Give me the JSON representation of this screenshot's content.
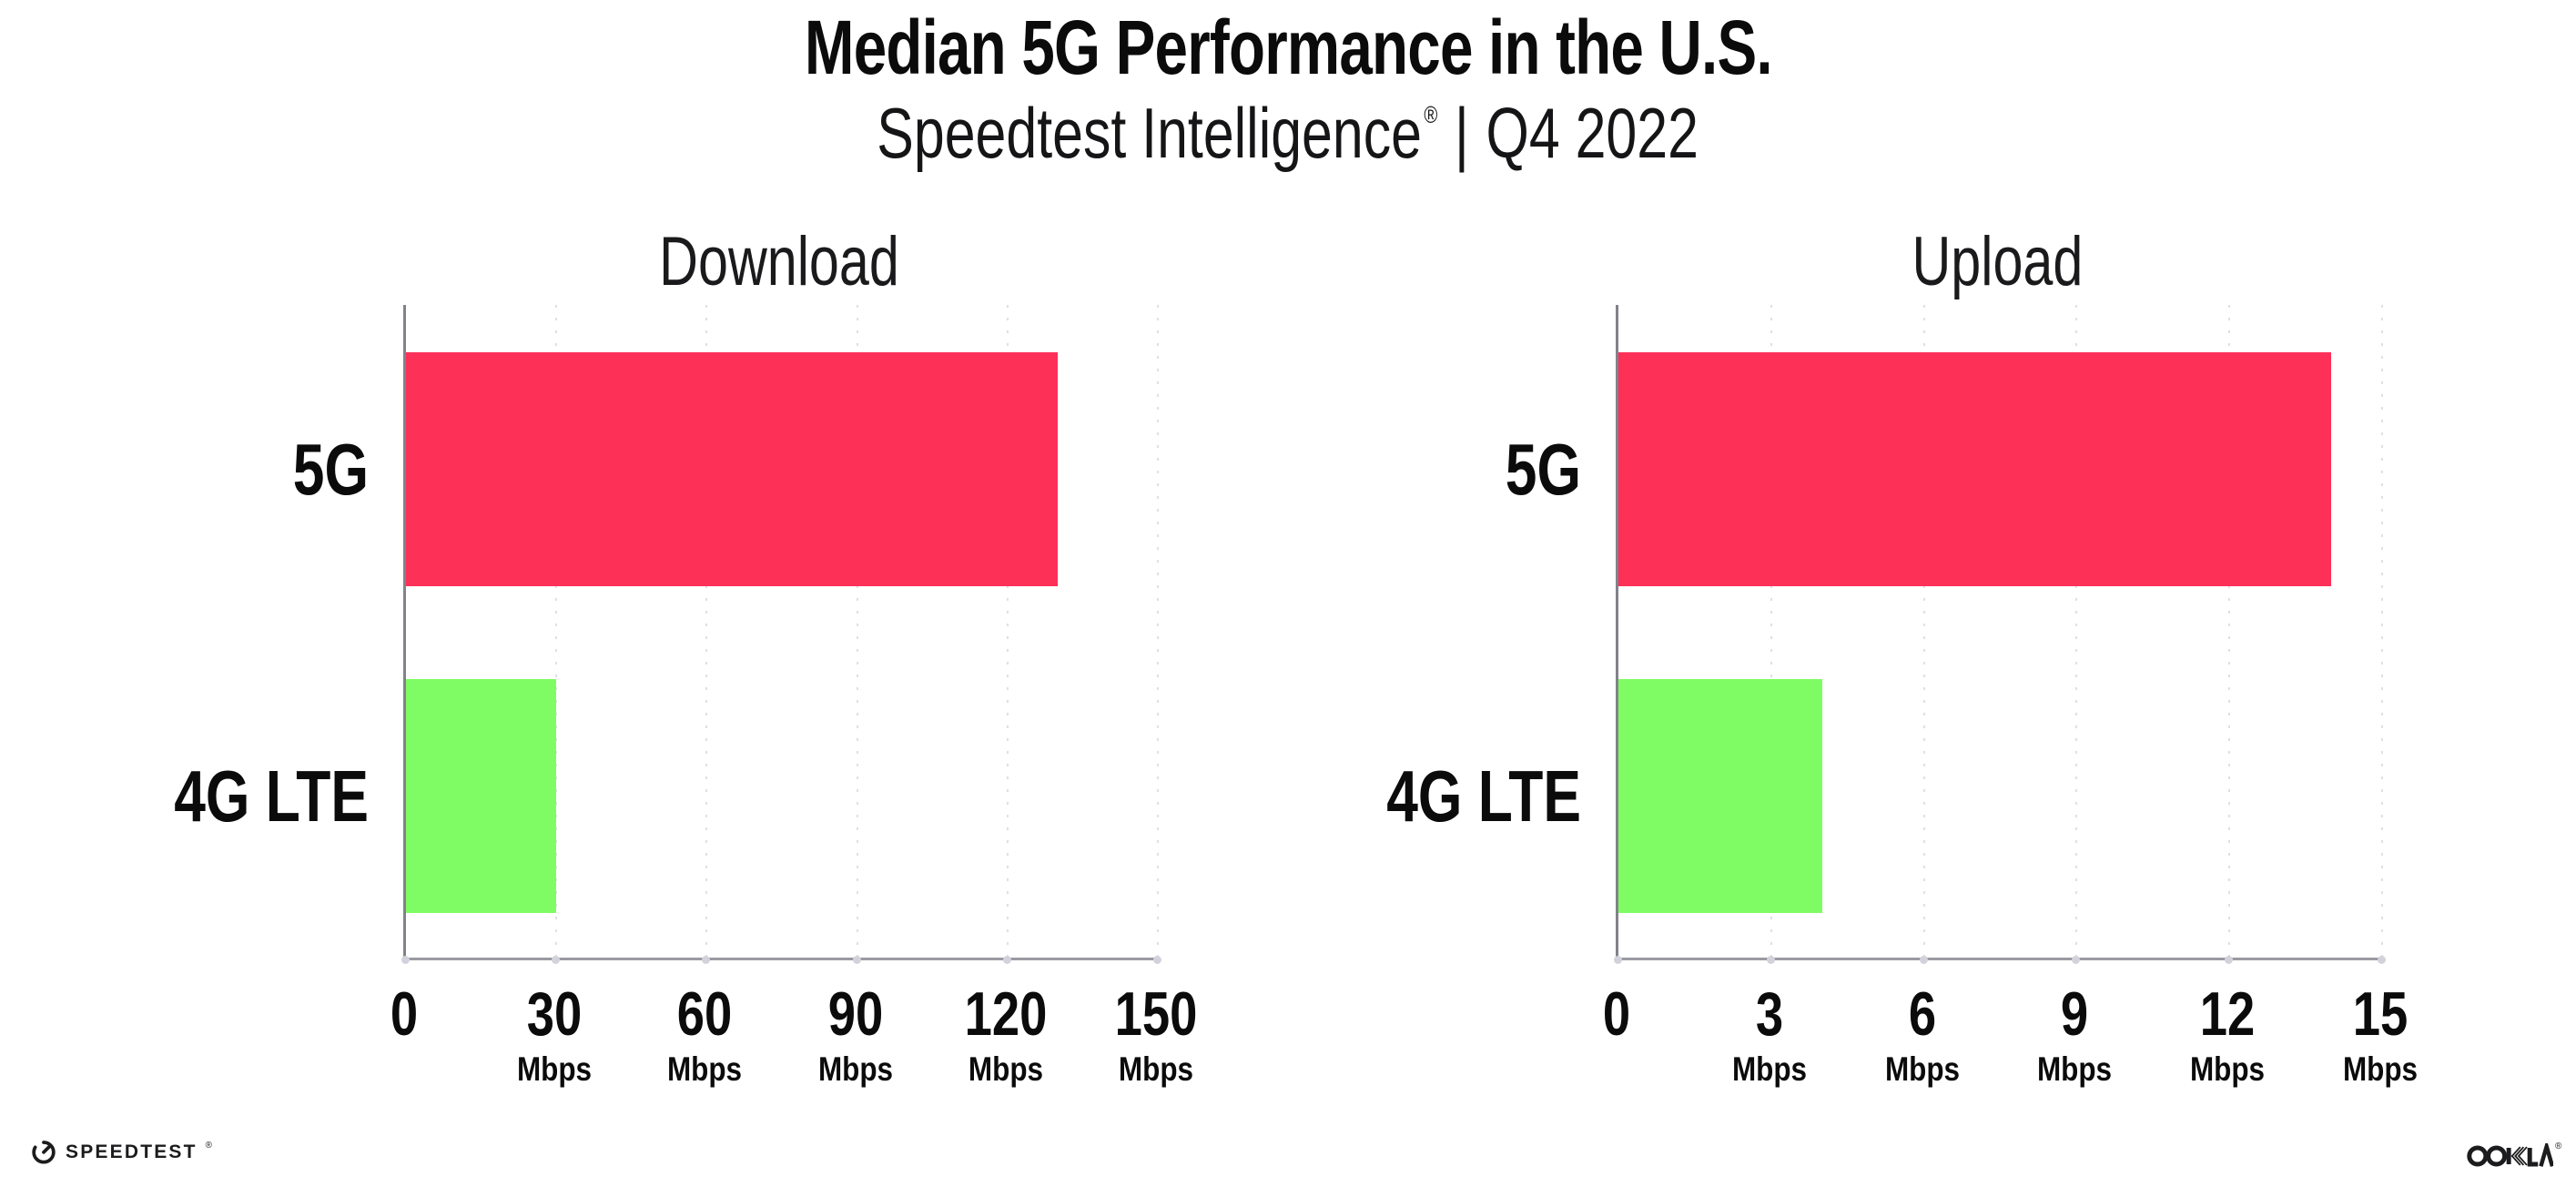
{
  "header": {
    "title": "Median 5G Performance in the U.S.",
    "subtitle": {
      "product": "Speedtest Intelligence",
      "registered_mark": "®",
      "separator": "|",
      "period": "Q4 2022"
    }
  },
  "chart_data": [
    {
      "type": "bar",
      "orientation": "horizontal",
      "title": "Download",
      "categories": [
        "5G",
        "4G LTE"
      ],
      "values": [
        130,
        30
      ],
      "unit": "Mbps",
      "xlim": [
        0,
        150
      ],
      "xticks": [
        0,
        30,
        60,
        90,
        120,
        150
      ],
      "bar_colors": [
        "#fd3058",
        "#7ffc64"
      ],
      "grid": "vertical-dotted",
      "legend": "none"
    },
    {
      "type": "bar",
      "orientation": "horizontal",
      "title": "Upload",
      "categories": [
        "5G",
        "4G LTE"
      ],
      "values": [
        14,
        4
      ],
      "unit": "Mbps",
      "xlim": [
        0,
        15
      ],
      "xticks": [
        0,
        3,
        6,
        9,
        12,
        15
      ],
      "bar_colors": [
        "#fd3058",
        "#7ffc64"
      ],
      "grid": "vertical-dotted",
      "legend": "none"
    }
  ],
  "footer": {
    "speedtest": {
      "icon": "gauge-icon",
      "label": "SPEEDTEST",
      "mark": "®"
    },
    "ookla": {
      "icon": "ookla-wordmark",
      "label": "OOKLA",
      "mark": "®"
    }
  },
  "colors": {
    "background": "#ffffff",
    "bar_5g": "#fd3058",
    "bar_4g_lte": "#7ffc64",
    "axis": "#8b8b92",
    "gridline": "#dfdfe9",
    "text": "#111111"
  }
}
